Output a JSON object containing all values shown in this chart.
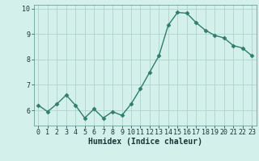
{
  "x": [
    0,
    1,
    2,
    3,
    4,
    5,
    6,
    7,
    8,
    9,
    10,
    11,
    12,
    13,
    14,
    15,
    16,
    17,
    18,
    19,
    20,
    21,
    22,
    23
  ],
  "y": [
    6.2,
    5.95,
    6.25,
    6.6,
    6.2,
    5.7,
    6.05,
    5.7,
    5.95,
    5.8,
    6.25,
    6.85,
    7.5,
    8.15,
    9.35,
    9.85,
    9.82,
    9.45,
    9.15,
    8.95,
    8.85,
    8.55,
    8.45,
    8.15
  ],
  "line_color": "#2e7d6e",
  "marker": "D",
  "markersize": 2.5,
  "linewidth": 1.0,
  "xlabel": "Humidex (Indice chaleur)",
  "ylim": [
    5.4,
    10.15
  ],
  "xlim": [
    -0.5,
    23.5
  ],
  "yticks": [
    6,
    7,
    8,
    9,
    10
  ],
  "xticks": [
    0,
    1,
    2,
    3,
    4,
    5,
    6,
    7,
    8,
    9,
    10,
    11,
    12,
    13,
    14,
    15,
    16,
    17,
    18,
    19,
    20,
    21,
    22,
    23
  ],
  "bg_color": "#d4f0eb",
  "grid_color": "#aed4cc",
  "xlabel_fontsize": 7,
  "xlabel_color": "#1a3535",
  "tick_fontsize": 6,
  "tick_color": "#1a3535",
  "spine_color": "#5a9090"
}
